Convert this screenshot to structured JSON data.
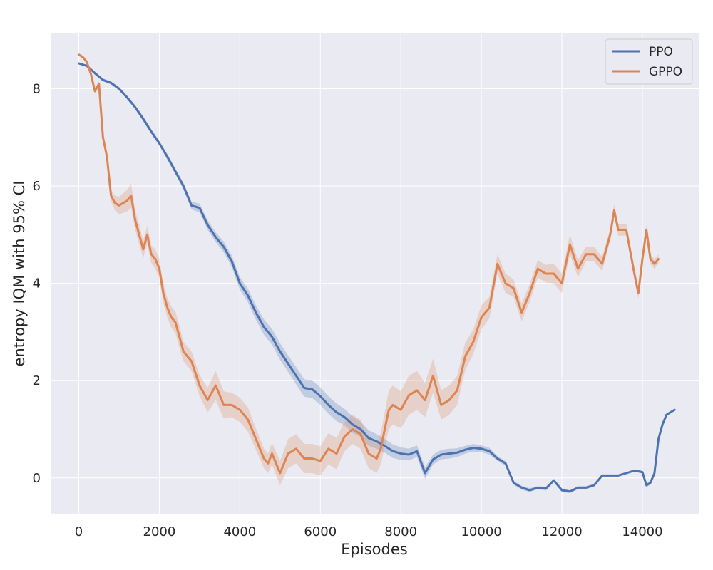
{
  "chart_data": {
    "type": "line",
    "xlabel": "Episodes",
    "ylabel": "entropy IQM with 95% CI",
    "xlim": [
      -700,
      15400
    ],
    "ylim": [
      -0.75,
      9.15
    ],
    "x_ticks": [
      0,
      2000,
      4000,
      6000,
      8000,
      10000,
      12000,
      14000
    ],
    "y_ticks": [
      0,
      2,
      4,
      6,
      8
    ],
    "grid": true,
    "legend_position": "top-right",
    "colors": {
      "PPO": "#4c72b0",
      "GPPO": "#dd8452",
      "plot_bg": "#eaeaf2",
      "grid": "#ffffff"
    },
    "series": [
      {
        "name": "PPO",
        "x": [
          0,
          200,
          400,
          600,
          800,
          1000,
          1200,
          1400,
          1600,
          1800,
          2000,
          2200,
          2400,
          2600,
          2800,
          3000,
          3200,
          3400,
          3600,
          3800,
          4000,
          4200,
          4400,
          4600,
          4800,
          5000,
          5200,
          5400,
          5600,
          5800,
          6000,
          6200,
          6400,
          6600,
          6800,
          7000,
          7200,
          7400,
          7600,
          7800,
          8000,
          8200,
          8400,
          8600,
          8800,
          9000,
          9200,
          9400,
          9600,
          9800,
          10000,
          10200,
          10400,
          10600,
          10800,
          11000,
          11200,
          11400,
          11600,
          11800,
          12000,
          12200,
          12400,
          12600,
          12800,
          13000,
          13200,
          13400,
          13600,
          13800,
          14000,
          14100,
          14200,
          14300,
          14400,
          14500,
          14600,
          14800
        ],
        "values": [
          8.52,
          8.47,
          8.32,
          8.18,
          8.12,
          8.0,
          7.82,
          7.62,
          7.38,
          7.12,
          6.88,
          6.6,
          6.3,
          6.0,
          5.6,
          5.55,
          5.2,
          4.95,
          4.75,
          4.45,
          4.0,
          3.75,
          3.4,
          3.1,
          2.9,
          2.6,
          2.35,
          2.1,
          1.85,
          1.82,
          1.68,
          1.5,
          1.35,
          1.25,
          1.1,
          1.0,
          0.82,
          0.75,
          0.66,
          0.55,
          0.5,
          0.48,
          0.55,
          0.1,
          0.38,
          0.48,
          0.5,
          0.52,
          0.58,
          0.62,
          0.6,
          0.55,
          0.4,
          0.3,
          -0.1,
          -0.2,
          -0.25,
          -0.2,
          -0.22,
          -0.05,
          -0.25,
          -0.28,
          -0.2,
          -0.2,
          -0.15,
          0.05,
          0.05,
          0.05,
          0.1,
          0.15,
          0.12,
          -0.15,
          -0.1,
          0.1,
          0.8,
          1.1,
          1.3,
          1.4
        ],
        "ci_halfwidth": [
          0.02,
          0.02,
          0.03,
          0.03,
          0.03,
          0.04,
          0.04,
          0.04,
          0.05,
          0.05,
          0.05,
          0.06,
          0.06,
          0.07,
          0.08,
          0.09,
          0.1,
          0.1,
          0.11,
          0.12,
          0.13,
          0.14,
          0.15,
          0.16,
          0.16,
          0.17,
          0.17,
          0.18,
          0.18,
          0.18,
          0.18,
          0.18,
          0.18,
          0.17,
          0.17,
          0.16,
          0.16,
          0.15,
          0.14,
          0.14,
          0.13,
          0.12,
          0.12,
          0.12,
          0.1,
          0.1,
          0.1,
          0.09,
          0.08,
          0.08,
          0.07,
          0.07,
          0.05,
          0.05,
          0.04,
          0.04,
          0.04,
          0.03,
          0.04,
          0.03,
          0.04,
          0.03,
          0.03,
          0.03,
          0.03,
          0.02,
          0.02,
          0.02,
          0.02,
          0.02,
          0.03,
          0.04,
          0.04,
          0.03,
          0.03,
          0.02,
          0.02,
          0.02
        ]
      },
      {
        "name": "GPPO",
        "x": [
          0,
          100,
          200,
          300,
          400,
          500,
          600,
          700,
          800,
          900,
          1000,
          1200,
          1300,
          1400,
          1500,
          1600,
          1700,
          1800,
          1900,
          2000,
          2100,
          2200,
          2300,
          2400,
          2500,
          2600,
          2800,
          3000,
          3200,
          3400,
          3600,
          3800,
          4000,
          4200,
          4400,
          4600,
          4700,
          4800,
          5000,
          5200,
          5400,
          5600,
          5800,
          6000,
          6200,
          6400,
          6600,
          6800,
          7000,
          7200,
          7400,
          7500,
          7600,
          7700,
          7800,
          8000,
          8200,
          8400,
          8600,
          8800,
          9000,
          9200,
          9400,
          9600,
          9800,
          10000,
          10200,
          10400,
          10600,
          10800,
          11000,
          11200,
          11400,
          11600,
          11800,
          12000,
          12200,
          12400,
          12600,
          12800,
          13000,
          13200,
          13300,
          13400,
          13600,
          13800,
          13900,
          14000,
          14100,
          14200,
          14300,
          14400
        ],
        "values": [
          8.7,
          8.65,
          8.55,
          8.3,
          7.95,
          8.1,
          7.0,
          6.6,
          5.8,
          5.65,
          5.6,
          5.7,
          5.8,
          5.3,
          5.0,
          4.7,
          5.0,
          4.6,
          4.5,
          4.3,
          3.8,
          3.5,
          3.3,
          3.2,
          2.9,
          2.6,
          2.4,
          1.9,
          1.6,
          1.9,
          1.5,
          1.5,
          1.4,
          1.2,
          0.8,
          0.4,
          0.3,
          0.5,
          0.1,
          0.5,
          0.6,
          0.4,
          0.4,
          0.35,
          0.6,
          0.5,
          0.85,
          1.0,
          0.9,
          0.5,
          0.4,
          0.6,
          1.0,
          1.4,
          1.5,
          1.4,
          1.7,
          1.8,
          1.6,
          2.1,
          1.5,
          1.6,
          1.8,
          2.5,
          2.8,
          3.3,
          3.5,
          4.4,
          4.0,
          3.9,
          3.4,
          3.8,
          4.3,
          4.2,
          4.2,
          4.0,
          4.8,
          4.3,
          4.6,
          4.6,
          4.4,
          5.0,
          5.5,
          5.1,
          5.1,
          4.2,
          3.8,
          4.5,
          5.1,
          4.5,
          4.4,
          4.5
        ],
        "ci_halfwidth": [
          0.02,
          0.03,
          0.03,
          0.04,
          0.05,
          0.06,
          0.08,
          0.1,
          0.12,
          0.15,
          0.18,
          0.22,
          0.25,
          0.2,
          0.2,
          0.18,
          0.18,
          0.18,
          0.2,
          0.2,
          0.2,
          0.2,
          0.22,
          0.22,
          0.22,
          0.2,
          0.2,
          0.22,
          0.25,
          0.3,
          0.28,
          0.25,
          0.25,
          0.25,
          0.22,
          0.2,
          0.2,
          0.22,
          0.25,
          0.3,
          0.3,
          0.3,
          0.3,
          0.3,
          0.32,
          0.32,
          0.3,
          0.3,
          0.3,
          0.3,
          0.3,
          0.32,
          0.35,
          0.4,
          0.4,
          0.38,
          0.4,
          0.4,
          0.35,
          0.35,
          0.3,
          0.3,
          0.3,
          0.28,
          0.25,
          0.25,
          0.22,
          0.2,
          0.2,
          0.18,
          0.18,
          0.18,
          0.18,
          0.18,
          0.2,
          0.2,
          0.2,
          0.18,
          0.15,
          0.15,
          0.15,
          0.12,
          0.12,
          0.12,
          0.12,
          0.12,
          0.12,
          0.12,
          0.1,
          0.1,
          0.1,
          0.1
        ]
      }
    ]
  }
}
